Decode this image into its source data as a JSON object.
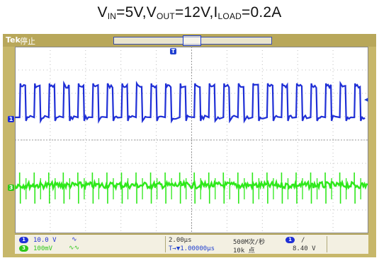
{
  "caption": {
    "v_in_label": "V",
    "v_in_sub": "IN",
    "v_in_value": "=5V,",
    "v_out_label": "V",
    "v_out_sub": "OUT",
    "v_out_value": "=12V,",
    "i_load_label": "I",
    "i_load_sub": "LOAD",
    "i_load_value": "=0.2A"
  },
  "scope": {
    "brand": "Tek",
    "state": "停止",
    "trigger_position_marker": "T",
    "channel1_marker": "1",
    "channel3_marker": "3"
  },
  "status_bar": {
    "ch1_badge": "1",
    "ch1_scale": "10.0 V",
    "ch1_coupling": "∿",
    "ch3_badge": "3",
    "ch3_scale": "100mV",
    "ch3_coupling": "∿∿",
    "timebase": "2.00μs",
    "horiz_position": "T→▼1.00000μs",
    "sample_rate": "500M次/秒",
    "record_length": "10k 点",
    "trigger_source_badge": "1",
    "trigger_slope": "/",
    "trigger_level": "8.40 V"
  },
  "colors": {
    "ch1": "#1f2fd6",
    "ch3": "#2ee81a",
    "bezel": "#c7b76a"
  },
  "waveforms": {
    "ch1_square_cycles": 24,
    "ch3_spike_count": 24
  }
}
